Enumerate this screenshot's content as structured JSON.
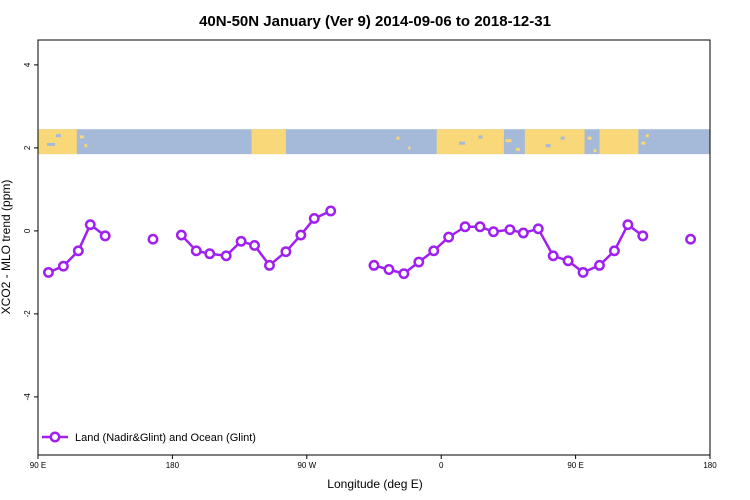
{
  "chart_data": {
    "type": "line",
    "title": "40N-50N January (Ver 9)   2014-09-06 to 2018-12-31",
    "xlabel": "Longitude (deg E)",
    "ylabel": "XCO2 - MLO trend (ppm)",
    "xlim": [
      90,
      540
    ],
    "ylim": [
      -5.4,
      4.6
    ],
    "x_ticks": [
      {
        "value": 90,
        "label": "90 E"
      },
      {
        "value": 180,
        "label": "180"
      },
      {
        "value": 270,
        "label": "90 W"
      },
      {
        "value": 360,
        "label": "0"
      },
      {
        "value": 450,
        "label": "90 E"
      },
      {
        "value": 540,
        "label": "180"
      }
    ],
    "y_ticks": [
      {
        "value": 4,
        "label": "4"
      },
      {
        "value": 2,
        "label": "2"
      },
      {
        "value": 0,
        "label": "0"
      },
      {
        "value": -2,
        "label": "-2"
      },
      {
        "value": -4,
        "label": "-4"
      }
    ],
    "map_strip": {
      "y_range": [
        1.85,
        2.45
      ],
      "ocean_color": "#a5b9d9",
      "land_color": "#f8d878"
    },
    "series": [
      {
        "name": "Land (Nadir&Glint) and Ocean (Glint)",
        "color": "#a020f0",
        "segments": [
          [
            [
              97,
              -1.0
            ],
            [
              107,
              -0.85
            ],
            [
              117,
              -0.48
            ],
            [
              125,
              0.15
            ],
            [
              135,
              -0.12
            ]
          ],
          [
            [
              167,
              -0.2
            ]
          ],
          [
            [
              186,
              -0.1
            ],
            [
              196,
              -0.48
            ],
            [
              205,
              -0.55
            ],
            [
              216,
              -0.6
            ],
            [
              226,
              -0.25
            ],
            [
              235,
              -0.35
            ],
            [
              245,
              -0.83
            ],
            [
              256,
              -0.5
            ],
            [
              266,
              -0.1
            ],
            [
              275,
              0.3
            ],
            [
              286,
              0.48
            ]
          ],
          [
            [
              315,
              -0.83
            ],
            [
              325,
              -0.93
            ],
            [
              335,
              -1.03
            ],
            [
              345,
              -0.75
            ],
            [
              355,
              -0.48
            ],
            [
              365,
              -0.15
            ],
            [
              376,
              0.1
            ],
            [
              386,
              0.1
            ],
            [
              395,
              -0.02
            ],
            [
              406,
              0.03
            ],
            [
              415,
              -0.05
            ],
            [
              425,
              0.05
            ],
            [
              435,
              -0.6
            ],
            [
              445,
              -0.72
            ],
            [
              455,
              -1.0
            ],
            [
              466,
              -0.83
            ],
            [
              476,
              -0.48
            ],
            [
              485,
              0.15
            ],
            [
              495,
              -0.12
            ]
          ],
          [
            [
              527,
              -0.2
            ]
          ]
        ]
      }
    ]
  }
}
